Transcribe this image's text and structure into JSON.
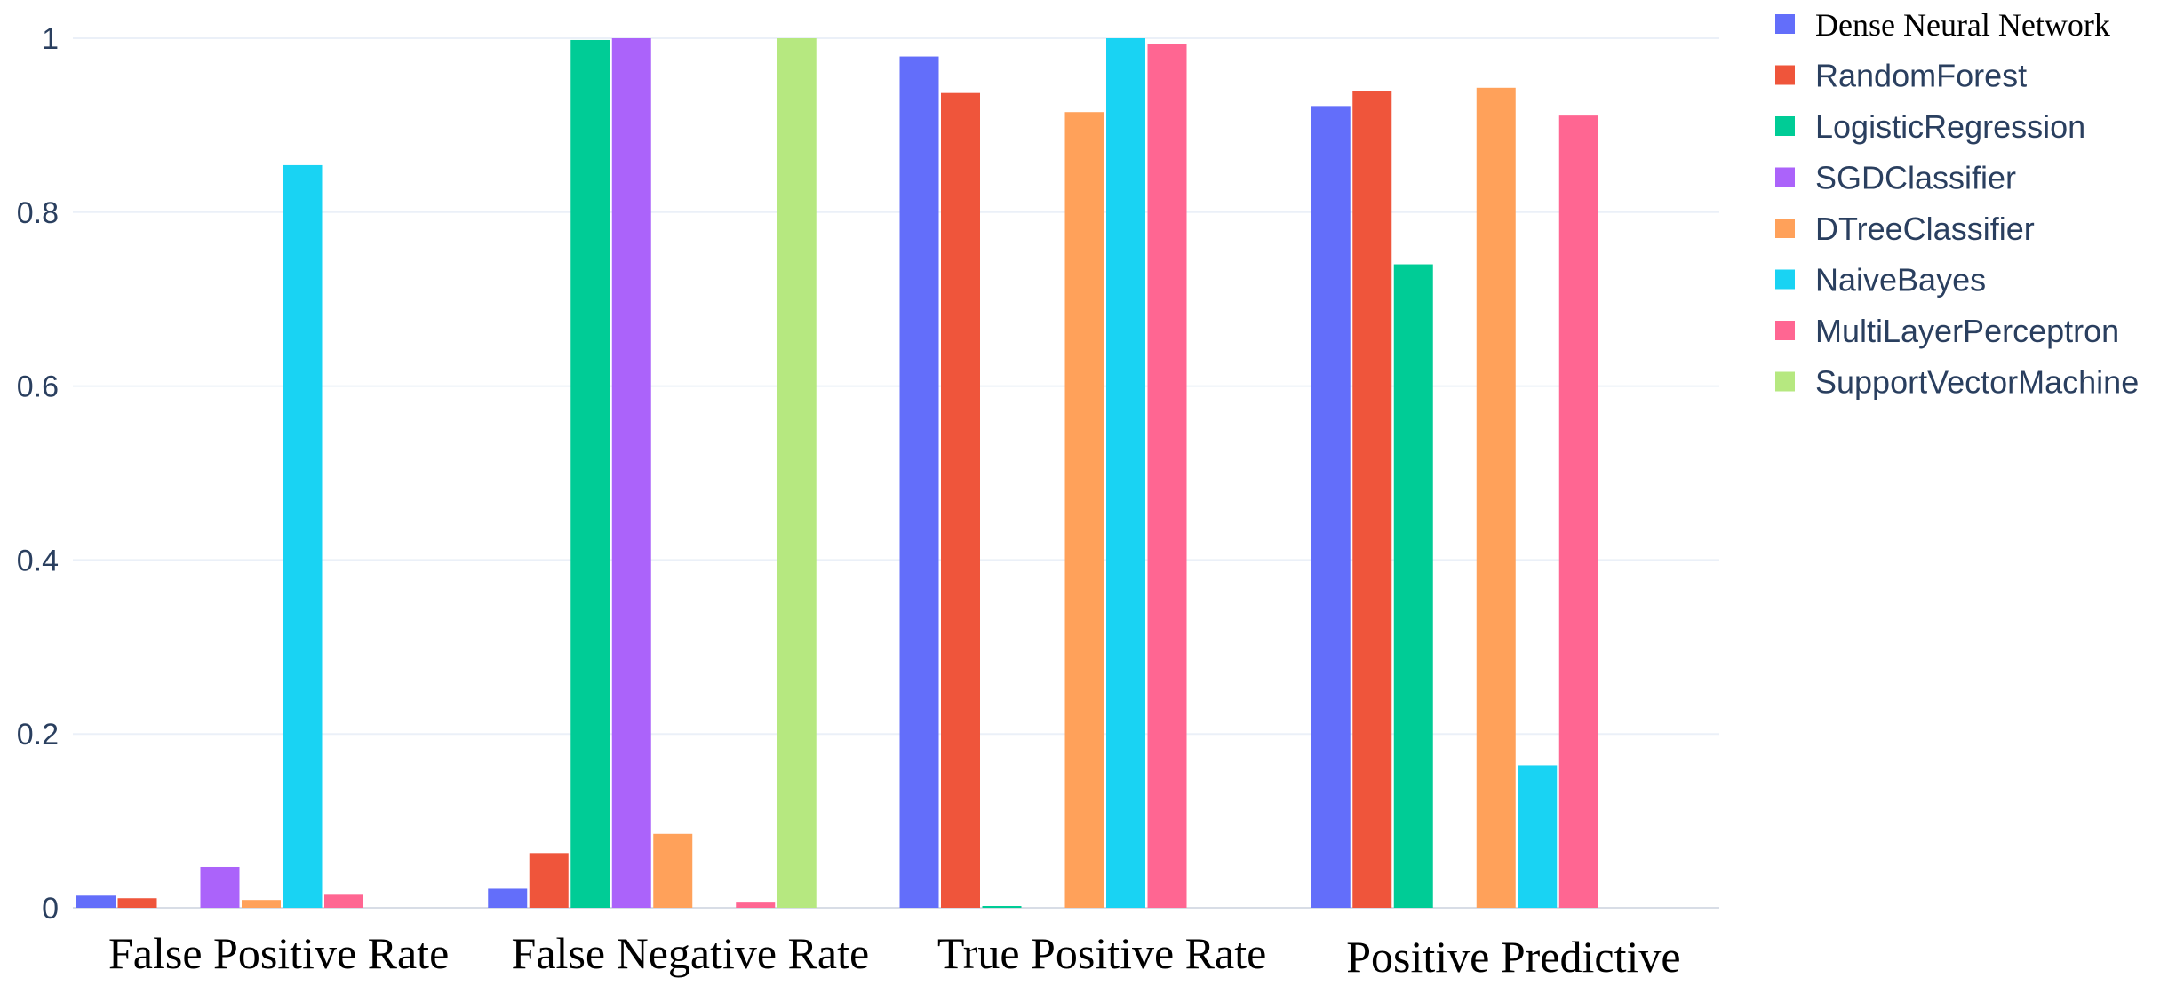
{
  "chart_data": {
    "type": "bar",
    "title": "",
    "xlabel": "",
    "ylabel": "",
    "ylim": [
      0,
      1
    ],
    "y_ticks": [
      0,
      0.2,
      0.4,
      0.6,
      0.8,
      1
    ],
    "y_tick_labels": [
      "0",
      "0.2",
      "0.4",
      "0.6",
      "0.8",
      "1"
    ],
    "grid": true,
    "legend_position": "top-right",
    "categories": [
      "False Positive Rate",
      "False Negative Rate",
      "True Positive Rate",
      "Positive Predictive"
    ],
    "series": [
      {
        "name": "Dense Neural Network",
        "color": "#636efa",
        "values": [
          0.014,
          0.022,
          0.979,
          0.922
        ]
      },
      {
        "name": "RandomForest",
        "color": "#ef553b",
        "values": [
          0.011,
          0.063,
          0.937,
          0.939
        ]
      },
      {
        "name": "LogisticRegression",
        "color": "#00cc96",
        "values": [
          0.0,
          0.998,
          0.002,
          0.74
        ]
      },
      {
        "name": "SGDClassifier",
        "color": "#ab63fa",
        "values": [
          0.047,
          1.0,
          0.0,
          0.0
        ]
      },
      {
        "name": "DTreeClassifier",
        "color": "#ffa15a",
        "values": [
          0.009,
          0.085,
          0.915,
          0.943
        ]
      },
      {
        "name": "NaiveBayes",
        "color": "#19d3f3",
        "values": [
          0.854,
          0.0,
          1.0,
          0.164
        ]
      },
      {
        "name": "MultiLayerPerceptron",
        "color": "#ff6692",
        "values": [
          0.016,
          0.007,
          0.993,
          0.911
        ]
      },
      {
        "name": "SupportVectorMachine",
        "color": "#b6e880",
        "values": [
          0.0,
          1.0,
          0.0,
          0.0
        ]
      }
    ]
  }
}
